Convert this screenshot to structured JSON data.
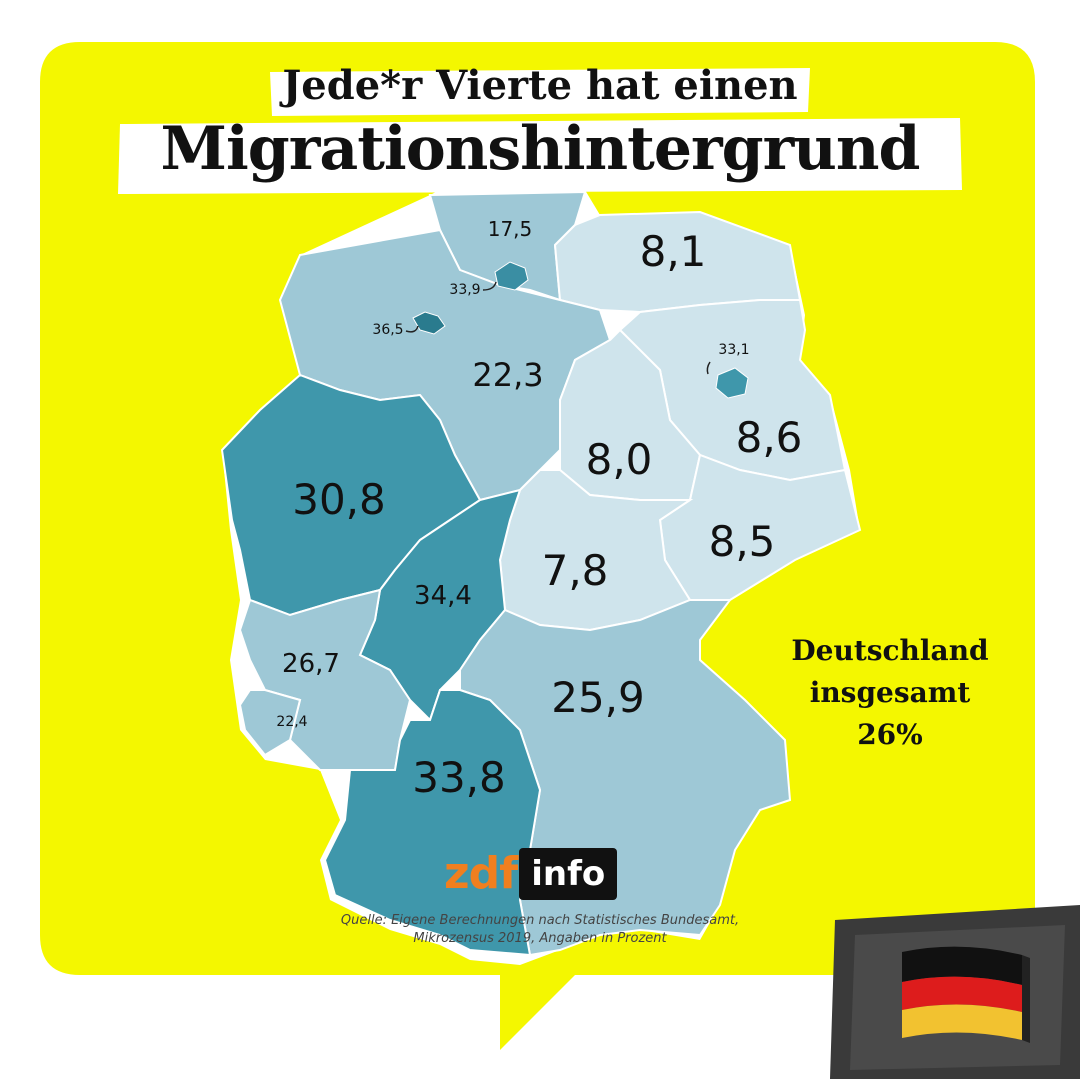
{
  "title": {
    "line1": "Jede*r Vierte hat einen",
    "line2": "Migrationshintergrund"
  },
  "total": {
    "line1": "Deutschland",
    "line2": "insgesamt",
    "line3": "26%"
  },
  "source": {
    "line1": "Quelle: Eigene Berechnungen nach Statistisches Bundesamt,",
    "line2": "Mikrozensus 2019, Angaben in Prozent"
  },
  "logo": {
    "zdf": "zdf",
    "info": "info"
  },
  "colors": {
    "background_yellow": "#f4f700",
    "light": "#cfe4ec",
    "medium": "#9ec8d6",
    "dark": "#3f97ab",
    "darkest": "#2a7b8e",
    "flag_dark": "#3a3a3a"
  },
  "regions": [
    {
      "name": "Schleswig-Holstein",
      "value": "17,5"
    },
    {
      "name": "Mecklenburg-Vorpommern",
      "value": "8,1"
    },
    {
      "name": "Hamburg",
      "value": "33,9"
    },
    {
      "name": "Bremen",
      "value": "36,5"
    },
    {
      "name": "Niedersachsen",
      "value": "22,3"
    },
    {
      "name": "Berlin",
      "value": "33,1"
    },
    {
      "name": "Brandenburg",
      "value": "8,6"
    },
    {
      "name": "Sachsen-Anhalt",
      "value": "8,0"
    },
    {
      "name": "Nordrhein-Westfalen",
      "value": "30,8"
    },
    {
      "name": "Sachsen",
      "value": "8,5"
    },
    {
      "name": "Thüringen",
      "value": "7,8"
    },
    {
      "name": "Hessen",
      "value": "34,4"
    },
    {
      "name": "Rheinland-Pfalz",
      "value": "26,7"
    },
    {
      "name": "Saarland",
      "value": "22,4"
    },
    {
      "name": "Bayern",
      "value": "25,9"
    },
    {
      "name": "Baden-Württemberg",
      "value": "33,8"
    }
  ]
}
